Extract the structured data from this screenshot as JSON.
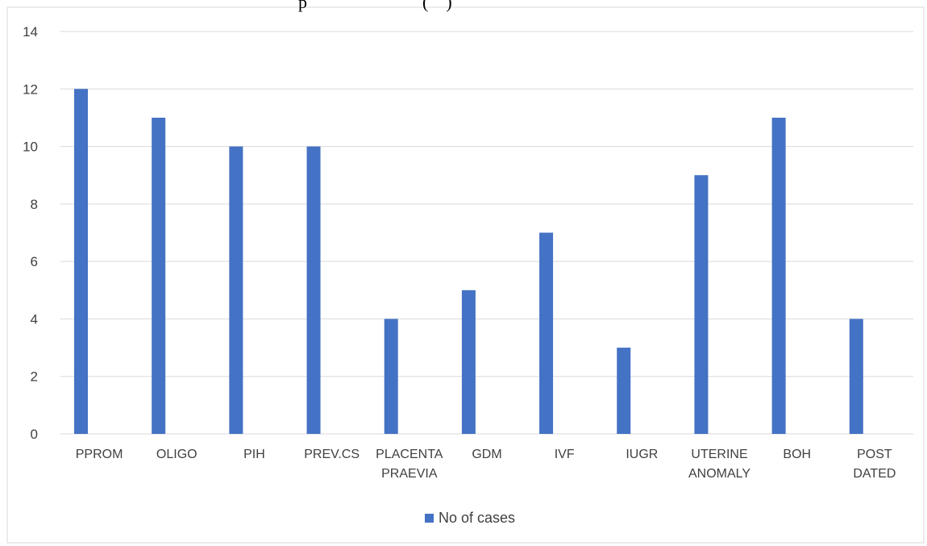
{
  "chart_data": {
    "type": "bar",
    "title": "",
    "visible_title_fragment": "p                          (    )",
    "xlabel": "",
    "ylabel": "",
    "categories": [
      [
        "PPROM"
      ],
      [
        "OLIGO"
      ],
      [
        "PIH"
      ],
      [
        "PREV.CS"
      ],
      [
        "PLACENTA",
        "PRAEVIA"
      ],
      [
        "GDM"
      ],
      [
        "IVF"
      ],
      [
        "IUGR"
      ],
      [
        "UTERINE",
        "ANOMALY"
      ],
      [
        "BOH"
      ],
      [
        "POST",
        "DATED"
      ]
    ],
    "series": [
      {
        "name": "No of cases",
        "values": [
          12,
          11,
          10,
          10,
          4,
          5,
          7,
          3,
          9,
          11,
          4
        ]
      }
    ],
    "ylim": [
      0,
      14
    ],
    "yticks": [
      "0",
      "2",
      "4",
      "6",
      "8",
      "10",
      "12",
      "14"
    ],
    "grid": true,
    "legend_position": "bottom",
    "colors": {
      "bar": "#4472C4",
      "grid": "#D9D9D9",
      "axis": "#D9D9D9",
      "border": "#D9D9D9",
      "text": "#404040"
    }
  }
}
